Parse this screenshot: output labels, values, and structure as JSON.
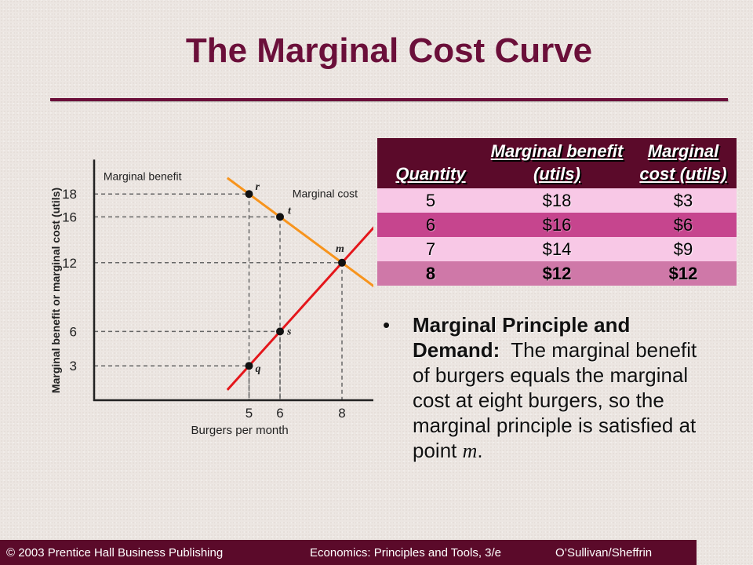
{
  "slide": {
    "title": "The Marginal Cost Curve"
  },
  "chart_data": {
    "type": "line",
    "ylabel": "Marginal benefit or marginal cost (utils)",
    "xlabel": "Burgers per month",
    "x_ticks": [
      5,
      6,
      8
    ],
    "y_ticks": [
      3,
      6,
      12,
      16,
      18
    ],
    "xlim": [
      0,
      9.6
    ],
    "ylim": [
      0,
      21
    ],
    "series": [
      {
        "name": "Marginal benefit",
        "points": [
          [
            4.3,
            19.4
          ],
          [
            9.5,
            9.0
          ]
        ],
        "color": "#f7941d"
      },
      {
        "name": "Marginal cost",
        "points": [
          [
            4.3,
            0.9
          ],
          [
            10.0,
            18.0
          ]
        ],
        "color": "#e4161b"
      }
    ],
    "points": [
      {
        "label": "r",
        "x": 5,
        "y": 18
      },
      {
        "label": "t",
        "x": 6,
        "y": 16
      },
      {
        "label": "m",
        "x": 8,
        "y": 12
      },
      {
        "label": "s",
        "x": 6,
        "y": 6
      },
      {
        "label": "q",
        "x": 5,
        "y": 3
      }
    ],
    "table": {
      "headers": [
        "Quantity",
        "Marginal benefit (utils)",
        "Marginal cost (utils)"
      ],
      "rows": [
        [
          "5",
          "$18",
          "$3"
        ],
        [
          "6",
          "$16",
          "$6"
        ],
        [
          "7",
          "$14",
          "$9"
        ],
        [
          "8",
          "$12",
          "$12"
        ]
      ]
    }
  },
  "bullet": {
    "heading": "Marginal Principle and Demand:",
    "text": "The marginal benefit  of burgers equals the marginal cost at eight burgers, so the marginal principle is satisfied at point",
    "point": "m",
    "end": "."
  },
  "footer": {
    "left": "© 2003 Prentice Hall Business Publishing",
    "center": "Economics: Principles and Tools, 3/e",
    "right": "O’Sullivan/Sheffrin"
  }
}
